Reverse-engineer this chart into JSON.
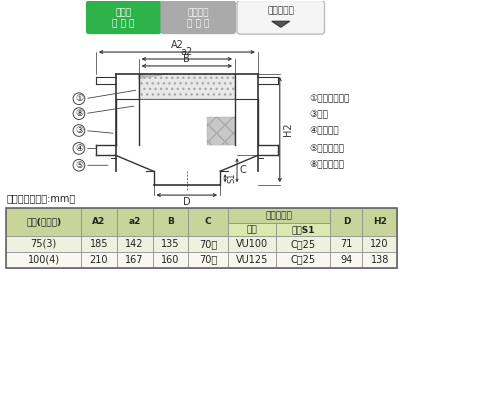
{
  "bg_color": "#ffffff",
  "badge1_text1": "塗　膜",
  "badge1_text2": "防 水 用",
  "badge1_color": "#2db34a",
  "badge2_text1": "モルタル",
  "badge2_text2": "防 水 用",
  "badge2_color": "#aaaaaa",
  "badge3_text": "差し込み式",
  "legend_items": [
    "①ストレーナー",
    "③本体",
    "④アンカー",
    "⑤スペーサー",
    "⑧つまみネジ"
  ],
  "dimension_label": "寸法表　＜単位:mm＞",
  "table_rows": [
    [
      "75(3)",
      "185",
      "142",
      "135",
      "70～",
      "VU100",
      "C－25",
      "71",
      "120"
    ],
    [
      "100(4)",
      "210",
      "167",
      "160",
      "70～",
      "VU125",
      "C－25",
      "94",
      "138"
    ]
  ],
  "table_bg_header": "#c8d49a",
  "table_bg_subheader": "#dce8b0",
  "table_bg_row0": "#eef0e0",
  "table_bg_row1": "#f8f8f0",
  "diagram_line_color": "#333333"
}
